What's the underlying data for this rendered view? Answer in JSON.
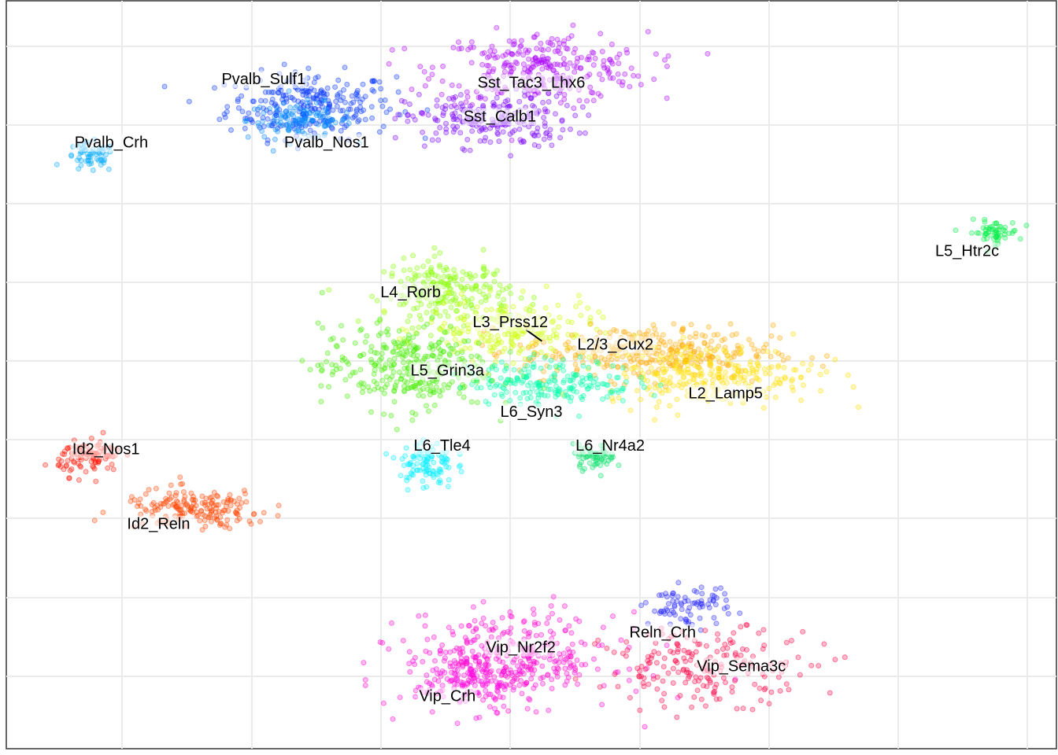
{
  "chart_data": {
    "type": "scatter",
    "title": "",
    "xlabel": "",
    "ylabel": "",
    "xlim": [
      0,
      100
    ],
    "ylim": [
      0,
      100
    ],
    "grid": true,
    "legend": "none (cluster labels placed on plot)",
    "series": [
      {
        "name": "Pvalb_Sulf1",
        "color": "#0033ff",
        "center": [
          29,
          86
        ],
        "spread": [
          4,
          2.2
        ],
        "n": 260
      },
      {
        "name": "Pvalb_Nos1",
        "color": "#0088ff",
        "center": [
          28,
          84
        ],
        "spread": [
          2.5,
          1.2
        ],
        "n": 120
      },
      {
        "name": "Pvalb_Crh",
        "color": "#00aaff",
        "center": [
          8,
          79
        ],
        "spread": [
          1.2,
          1.0
        ],
        "n": 60
      },
      {
        "name": "Sst_Tac3_Lhx6",
        "color": "#aa00ff",
        "center": [
          51,
          91
        ],
        "spread": [
          5,
          2.4
        ],
        "n": 300
      },
      {
        "name": "Sst_Calb1",
        "color": "#7700ff",
        "center": [
          46,
          84
        ],
        "spread": [
          4,
          1.8
        ],
        "n": 220
      },
      {
        "name": "L5_Htr2c",
        "color": "#00ee44",
        "center": [
          94,
          69
        ],
        "spread": [
          1.2,
          0.8
        ],
        "n": 60
      },
      {
        "name": "L4_Rorb",
        "color": "#88ff00",
        "center": [
          42,
          61
        ],
        "spread": [
          3,
          2.2
        ],
        "n": 240
      },
      {
        "name": "L3_Prss12",
        "color": "#ccff00",
        "center": [
          48,
          56
        ],
        "spread": [
          4,
          2.0
        ],
        "n": 200
      },
      {
        "name": "L2/3_Cux2",
        "color": "#ffaa00",
        "center": [
          61,
          53
        ],
        "spread": [
          6,
          1.8
        ],
        "n": 320
      },
      {
        "name": "L2_Lamp5",
        "color": "#ffdd00",
        "center": [
          67,
          50
        ],
        "spread": [
          5,
          2.0
        ],
        "n": 260
      },
      {
        "name": "L5_Grin3a",
        "color": "#44ee00",
        "center": [
          38,
          51
        ],
        "spread": [
          4,
          2.8
        ],
        "n": 320
      },
      {
        "name": "L6_Syn3",
        "color": "#00ffaa",
        "center": [
          52,
          49
        ],
        "spread": [
          4,
          1.5
        ],
        "n": 200
      },
      {
        "name": "L6_Tle4",
        "color": "#00eeff",
        "center": [
          40,
          38
        ],
        "spread": [
          1.3,
          1.6
        ],
        "n": 100
      },
      {
        "name": "L6_Nr4a2",
        "color": "#00dd66",
        "center": [
          56,
          39
        ],
        "spread": [
          1.0,
          0.8
        ],
        "n": 60
      },
      {
        "name": "Id2_Nos1",
        "color": "#ff1100",
        "center": [
          8,
          39
        ],
        "spread": [
          1.5,
          1.2
        ],
        "n": 100
      },
      {
        "name": "Id2_Reln",
        "color": "#ff4400",
        "center": [
          18,
          32
        ],
        "spread": [
          3.5,
          1.3
        ],
        "n": 180
      },
      {
        "name": "Vip_Nr2f2",
        "color": "#ff00cc",
        "center": [
          48,
          12
        ],
        "spread": [
          5,
          3.0
        ],
        "n": 360
      },
      {
        "name": "Vip_Crh",
        "color": "#ff00dd",
        "center": [
          44,
          9
        ],
        "spread": [
          2.5,
          2.0
        ],
        "n": 120
      },
      {
        "name": "Reln_Crh",
        "color": "#2222ff",
        "center": [
          65,
          19
        ],
        "spread": [
          2.0,
          1.3
        ],
        "n": 80
      },
      {
        "name": "Vip_Sema3c",
        "color": "#ff0044",
        "center": [
          67,
          11
        ],
        "spread": [
          5,
          2.5
        ],
        "n": 200
      }
    ],
    "annotations": [
      {
        "text": "Pvalb_Sulf1",
        "x": 24.5,
        "y": 89.5
      },
      {
        "text": "Sst_Tac3_Lhx6",
        "x": 50,
        "y": 89
      },
      {
        "text": "Sst_Calb1",
        "x": 47,
        "y": 84.5
      },
      {
        "text": "Pvalb_Crh",
        "x": 10,
        "y": 81
      },
      {
        "text": "Pvalb_Nos1",
        "x": 30.5,
        "y": 81
      },
      {
        "text": "L5_Htr2c",
        "x": 91.5,
        "y": 66.5
      },
      {
        "text": "L4_Rorb",
        "x": 38.5,
        "y": 61
      },
      {
        "text": "L3_Prss12",
        "x": 48,
        "y": 57
      },
      {
        "text": "L2/3_Cux2",
        "x": 58,
        "y": 54
      },
      {
        "text": "L5_Grin3a",
        "x": 42,
        "y": 50.5
      },
      {
        "text": "L2_Lamp5",
        "x": 68.5,
        "y": 47.5
      },
      {
        "text": "L6_Syn3",
        "x": 50,
        "y": 45
      },
      {
        "text": "L6_Tle4",
        "x": 41.5,
        "y": 40.5
      },
      {
        "text": "L6_Nr4a2",
        "x": 57.5,
        "y": 40.5
      },
      {
        "text": "Id2_Nos1",
        "x": 9.5,
        "y": 40
      },
      {
        "text": "Id2_Reln",
        "x": 14.5,
        "y": 30
      },
      {
        "text": "Vip_Nr2f2",
        "x": 49,
        "y": 13.5
      },
      {
        "text": "Reln_Crh",
        "x": 62.5,
        "y": 15.5
      },
      {
        "text": "Vip_Sema3c",
        "x": 70,
        "y": 11
      },
      {
        "text": "Vip_Crh",
        "x": 42,
        "y": 7
      }
    ],
    "leader_lines": [
      {
        "from": [
          49.5,
          56
        ],
        "to": [
          51,
          54.5
        ]
      }
    ]
  }
}
